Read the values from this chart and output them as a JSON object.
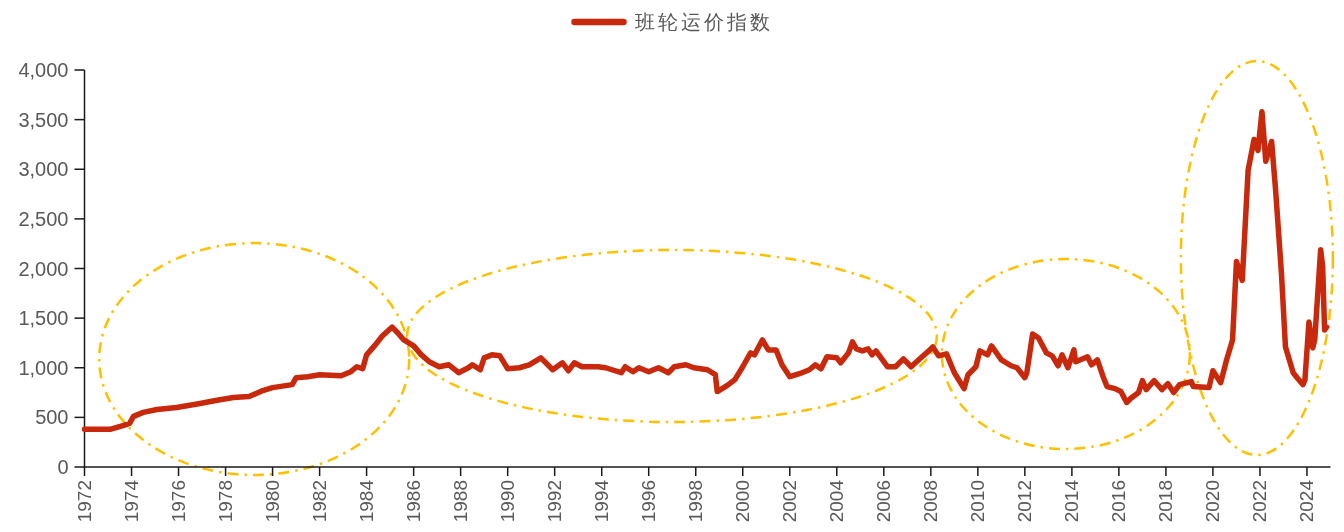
{
  "chart_data": {
    "type": "line",
    "x": [
      "1972-01",
      "1973-02",
      "1973-09",
      "1973-12",
      "1974-02",
      "1974-07",
      "1975-02",
      "1975-12",
      "1976-12",
      "1977-08",
      "1978-05",
      "1979-01",
      "1979-08",
      "1980-01",
      "1980-11",
      "1981-01",
      "1981-07",
      "1982-01",
      "1982-12",
      "1983-05",
      "1983-08",
      "1983-11",
      "1984-01",
      "1984-05",
      "1984-09",
      "1985-02",
      "1985-05",
      "1985-08",
      "1986-01",
      "1986-05",
      "1986-09",
      "1987-02",
      "1987-07",
      "1987-12",
      "1988-05",
      "1988-07",
      "1988-11",
      "1989-01",
      "1989-05",
      "1989-09",
      "1990-01",
      "1990-07",
      "1990-12",
      "1991-06",
      "1991-12",
      "1992-05",
      "1992-08",
      "1992-11",
      "1993-03",
      "1993-11",
      "1994-03",
      "1994-11",
      "1995-01",
      "1995-05",
      "1995-08",
      "1996-01",
      "1996-06",
      "1996-11",
      "1997-02",
      "1997-08",
      "1997-12",
      "1998-07",
      "1998-11",
      "1998-12",
      "1999-05",
      "1999-09",
      "2000-01",
      "2000-05",
      "2000-07",
      "2000-11",
      "2001-02",
      "2001-06",
      "2001-09",
      "2002-01",
      "2002-06",
      "2002-11",
      "2003-02",
      "2003-05",
      "2003-08",
      "2004-01",
      "2004-03",
      "2004-07",
      "2004-09",
      "2004-11",
      "2005-02",
      "2005-05",
      "2005-07",
      "2005-09",
      "2006-03",
      "2006-07",
      "2006-11",
      "2007-03",
      "2007-08",
      "2007-12",
      "2008-02",
      "2008-05",
      "2008-09",
      "2009-01",
      "2009-06",
      "2009-08",
      "2009-12",
      "2010-02",
      "2010-06",
      "2010-08",
      "2011-01",
      "2011-06",
      "2011-09",
      "2012-01",
      "2012-02",
      "2012-05",
      "2012-08",
      "2012-12",
      "2013-03",
      "2013-06",
      "2013-08",
      "2013-11",
      "2014-02",
      "2014-03",
      "2014-09",
      "2014-11",
      "2015-02",
      "2015-05",
      "2015-07",
      "2015-11",
      "2016-02",
      "2016-05",
      "2016-07",
      "2016-11",
      "2017-01",
      "2017-03",
      "2017-07",
      "2017-11",
      "2018-02",
      "2018-05",
      "2018-08",
      "2019-02",
      "2019-03",
      "2019-11",
      "2020-01",
      "2020-05",
      "2020-08",
      "2020-11",
      "2021-01",
      "2021-04",
      "2021-07",
      "2021-10",
      "2021-12",
      "2022-02",
      "2022-04",
      "2022-07",
      "2022-09",
      "2022-12",
      "2023-02",
      "2023-06",
      "2023-08",
      "2023-11",
      "2023-12",
      "2024-02",
      "2024-04",
      "2024-05",
      "2024-08",
      "2024-09",
      "2024-10",
      "2024-11"
    ],
    "series": [
      {
        "name": "班轮运价指数",
        "color": "#c8290c",
        "values": [
          380,
          380,
          420,
          440,
          510,
          550,
          580,
          600,
          640,
          670,
          700,
          710,
          770,
          800,
          830,
          900,
          910,
          930,
          920,
          960,
          1010,
          990,
          1130,
          1220,
          1320,
          1410,
          1350,
          1280,
          1220,
          1130,
          1060,
          1010,
          1030,
          950,
          1000,
          1030,
          980,
          1100,
          1130,
          1120,
          990,
          1000,
          1030,
          1100,
          980,
          1050,
          970,
          1050,
          1010,
          1010,
          1000,
          950,
          1010,
          960,
          1000,
          960,
          1000,
          950,
          1010,
          1030,
          1000,
          980,
          930,
          760,
          820,
          880,
          1010,
          1150,
          1130,
          1280,
          1180,
          1180,
          1030,
          910,
          940,
          980,
          1030,
          990,
          1110,
          1100,
          1050,
          1150,
          1260,
          1190,
          1170,
          1190,
          1130,
          1170,
          1010,
          1010,
          1090,
          1010,
          1100,
          1170,
          1210,
          1120,
          1140,
          950,
          790,
          930,
          1010,
          1170,
          1130,
          1220,
          1080,
          1020,
          1000,
          900,
          950,
          1340,
          1300,
          1150,
          1120,
          1020,
          1130,
          1000,
          1180,
          1060,
          1110,
          1030,
          1080,
          910,
          810,
          790,
          760,
          650,
          690,
          750,
          870,
          780,
          870,
          780,
          840,
          750,
          830,
          860,
          810,
          800,
          970,
          850,
          1080,
          1280,
          2070,
          1880,
          2990,
          3300,
          3190,
          3580,
          3080,
          3280,
          2790,
          1950,
          1210,
          950,
          900,
          830,
          880,
          1460,
          1200,
          1280,
          2190,
          2020,
          1380,
          1410
        ]
      }
    ],
    "xlim": [
      "1972",
      "2025"
    ],
    "xticks": [
      "1972",
      "1974",
      "1976",
      "1978",
      "1980",
      "1982",
      "1984",
      "1986",
      "1988",
      "1990",
      "1992",
      "1994",
      "1996",
      "1998",
      "2000",
      "2002",
      "2004",
      "2006",
      "2008",
      "2010",
      "2012",
      "2014",
      "2016",
      "2018",
      "2020",
      "2022",
      "2024"
    ],
    "ylim": [
      0,
      4000
    ],
    "yticks": [
      0,
      500,
      {
        "value": 1000,
        "label": "1,000"
      },
      {
        "value": 1500,
        "label": "1,500"
      },
      {
        "value": 2000,
        "label": "2,000"
      },
      {
        "value": 2500,
        "label": "2,500"
      },
      {
        "value": 3000,
        "label": "3,000"
      },
      {
        "value": 3500,
        "label": "3,500"
      },
      {
        "value": 4000,
        "label": "4,000"
      }
    ],
    "legend": "top"
  }
}
